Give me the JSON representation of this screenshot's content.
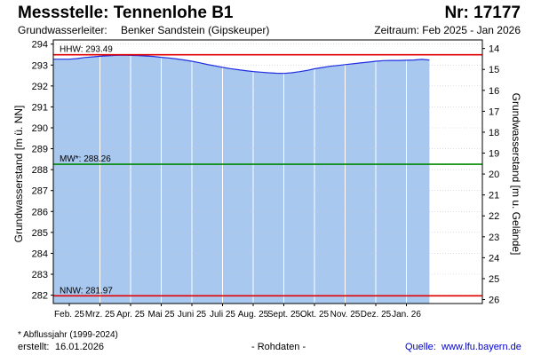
{
  "header": {
    "title": "Messstelle: Tennenlohe B1",
    "number": "Nr: 17177",
    "aquifer_label": "Grundwasserleiter:",
    "aquifer_value": "Benker Sandstein (Gipskeuper)",
    "period": "Zeitraum: Feb 2025 - Jan 2026"
  },
  "footer": {
    "footnote": "* Abflussjahr (1999-2024)",
    "created_label": "erstellt:",
    "created_value": "16.01.2026",
    "rohdaten": "- Rohdaten -",
    "source_label": "Quelle:",
    "source_value": "www.lfu.bayern.de"
  },
  "colors": {
    "area_fill": "#a8c8f0",
    "series_line": "#1f2fe0",
    "hhw_line": "#e00000",
    "mw_line": "#008800",
    "nnw_line": "#e00000",
    "vertical_grid": "#ffffff"
  },
  "chart_data": {
    "type": "area",
    "ylabel": "Grundwasserstand [m ü. NN]",
    "ylabel_right": "Grundwasserstand [m u. Gelände]",
    "ylim": [
      281.6,
      294.2
    ],
    "yticks": [
      282,
      283,
      284,
      285,
      286,
      287,
      288,
      289,
      290,
      291,
      292,
      293,
      294
    ],
    "ylim_right": [
      26.19,
      13.59
    ],
    "yticks_right": [
      14,
      15,
      16,
      17,
      18,
      19,
      20,
      21,
      22,
      23,
      24,
      25,
      26
    ],
    "x_months": [
      "Feb. 25",
      "Mrz. 25",
      "Apr. 25",
      "Mai 25",
      "Juni 25",
      "Juli 25",
      "Aug. 25",
      "Sept. 25",
      "Okt. 25",
      "Nov. 25",
      "Dez. 25",
      "Jan. 26"
    ],
    "grid": "vertical month lines",
    "series": [
      {
        "x": [
          0,
          0.25,
          0.5,
          0.75,
          1,
          1.25,
          1.5,
          1.75,
          2,
          2.25,
          2.5,
          2.75,
          3,
          3.25,
          3.5,
          3.75,
          4,
          4.25,
          4.5,
          4.75,
          5,
          5.25,
          5.5,
          5.75,
          6,
          6.25,
          6.5,
          6.75,
          7,
          7.25,
          7.5,
          7.75,
          8,
          8.25,
          8.5,
          8.75,
          9,
          9.25,
          9.5,
          9.75,
          10,
          10.25,
          10.5,
          10.75,
          11,
          11.25,
          11.5,
          11.75
        ],
        "values": [
          293.28,
          293.31,
          293.36,
          293.39,
          293.42,
          293.44,
          293.46,
          293.47,
          293.46,
          293.45,
          293.43,
          293.41,
          293.37,
          293.34,
          293.29,
          293.24,
          293.18,
          293.11,
          293.03,
          292.96,
          292.89,
          292.83,
          292.78,
          292.73,
          292.69,
          292.66,
          292.63,
          292.61,
          292.6,
          292.63,
          292.68,
          292.74,
          292.82,
          292.88,
          292.94,
          292.98,
          293.02,
          293.06,
          293.1,
          293.14,
          293.18,
          293.21,
          293.22,
          293.22,
          293.23,
          293.24,
          293.27,
          293.24
        ]
      }
    ],
    "reference_lines": [
      {
        "label": "HHW: 293.49",
        "value": 293.49
      },
      {
        "label": "MW*: 288.26",
        "value": 288.26
      },
      {
        "label": "NNW: 281.97",
        "value": 281.97
      }
    ]
  }
}
